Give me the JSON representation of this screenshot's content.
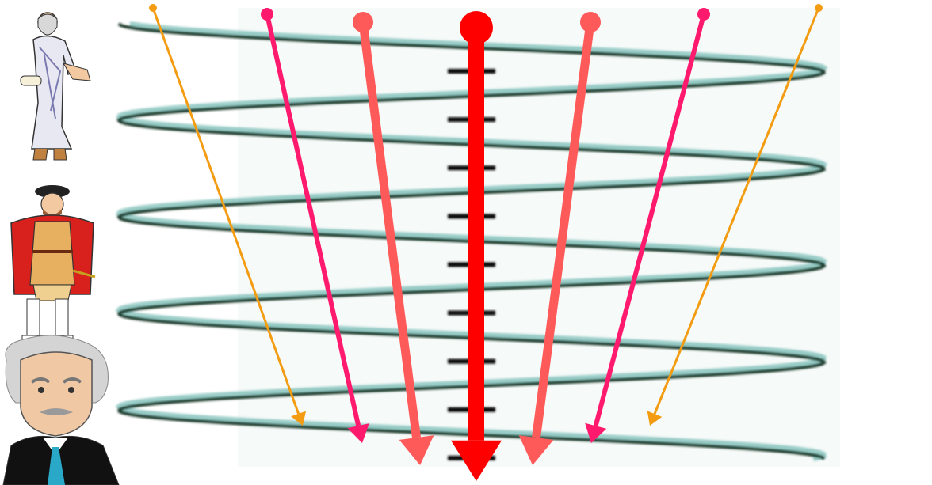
{
  "figures": [
    {
      "id": "ancient-greek-philosopher",
      "icon": "philosopher-figure-icon"
    },
    {
      "id": "tudor-king",
      "icon": "king-figure-icon"
    },
    {
      "id": "einstein",
      "icon": "scientist-portrait-icon"
    }
  ],
  "helix": {
    "strand_colors": [
      "#1f3a2a",
      "#6fb8b0"
    ],
    "rung_color": "#111111",
    "turns": 4.5
  },
  "arrows": [
    {
      "name": "arrow-outer-left",
      "color": "#f39c12",
      "weight": "thin"
    },
    {
      "name": "arrow-inner-left",
      "color": "#ff1a6e",
      "weight": "medium"
    },
    {
      "name": "arrow-near-left",
      "color": "#ff5a5a",
      "weight": "thick"
    },
    {
      "name": "arrow-center",
      "color": "#ff0000",
      "weight": "heavy"
    },
    {
      "name": "arrow-near-right",
      "color": "#ff5a5a",
      "weight": "thick"
    },
    {
      "name": "arrow-inner-right",
      "color": "#ff1a6e",
      "weight": "medium"
    },
    {
      "name": "arrow-outer-right",
      "color": "#f39c12",
      "weight": "thin"
    }
  ]
}
